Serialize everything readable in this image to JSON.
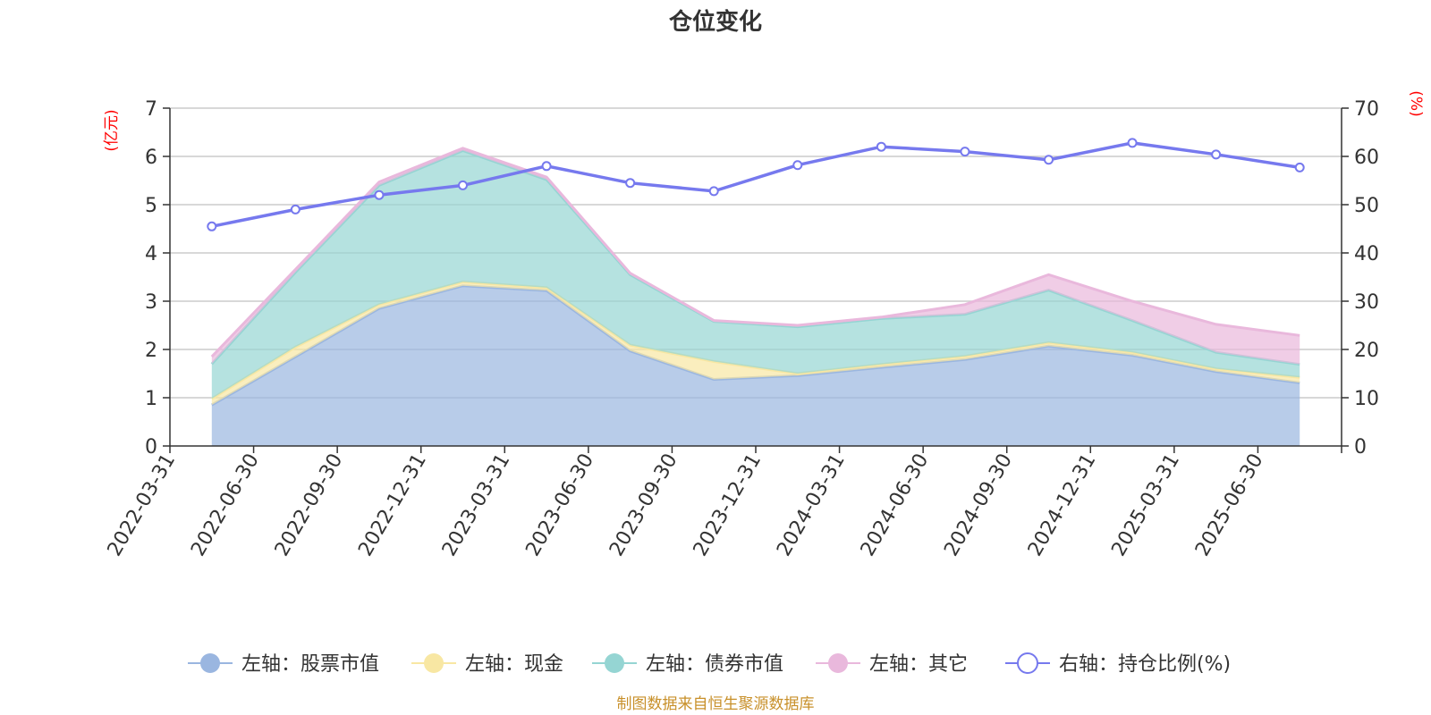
{
  "chart_data": {
    "type": "area",
    "title": "仓位变化",
    "left_axis_unit": "(亿元)",
    "right_axis_unit": "(%)",
    "ylim_left": [
      0,
      7
    ],
    "ylim_right": [
      0,
      70
    ],
    "left_ticks": [
      "0",
      "1",
      "2",
      "3",
      "4",
      "5",
      "6",
      "7"
    ],
    "right_ticks": [
      "0",
      "10",
      "20",
      "30",
      "40",
      "50",
      "60",
      "70"
    ],
    "grid": true,
    "legend_position": "bottom",
    "categories": [
      "2022-03-31",
      "2022-06-30",
      "2022-09-30",
      "2022-12-31",
      "2023-03-31",
      "2023-06-30",
      "2023-09-30",
      "2023-12-31",
      "2024-03-31",
      "2024-06-30",
      "2024-09-30",
      "2024-12-31",
      "2025-03-31",
      "2025-06-30"
    ],
    "series": [
      {
        "name": "左轴：股票市值",
        "axis": "left",
        "stack": true,
        "color": "#9ab6e0",
        "values": [
          0.85,
          1.85,
          2.85,
          3.32,
          3.22,
          1.97,
          1.38,
          1.46,
          1.63,
          1.79,
          2.07,
          1.88,
          1.54,
          1.31
        ]
      },
      {
        "name": "左轴：现金",
        "axis": "left",
        "stack": true,
        "color": "#f8e7a3",
        "values": [
          0.13,
          0.2,
          0.08,
          0.08,
          0.06,
          0.12,
          0.37,
          0.04,
          0.06,
          0.07,
          0.07,
          0.06,
          0.06,
          0.11
        ]
      },
      {
        "name": "左轴：债券市值",
        "axis": "left",
        "stack": true,
        "color": "#95d5d3",
        "values": [
          0.72,
          1.55,
          2.47,
          2.72,
          2.24,
          1.46,
          0.83,
          0.97,
          0.95,
          0.87,
          1.09,
          0.66,
          0.34,
          0.27
        ]
      },
      {
        "name": "左轴：其它",
        "axis": "left",
        "stack": true,
        "color": "#e9b8dc",
        "values": [
          0.15,
          0.06,
          0.07,
          0.05,
          0.05,
          0.03,
          0.02,
          0.03,
          0.03,
          0.2,
          0.32,
          0.4,
          0.58,
          0.6
        ]
      },
      {
        "name": "右轴：持仓比例(%)",
        "axis": "right",
        "type": "line",
        "color": "#7679ee",
        "values": [
          45.5,
          49.0,
          52.0,
          54.0,
          58.0,
          54.5,
          52.8,
          58.2,
          62.0,
          61.0,
          59.3,
          62.8,
          60.4,
          57.7
        ]
      }
    ],
    "source": "制图数据来自恒生聚源数据库"
  }
}
